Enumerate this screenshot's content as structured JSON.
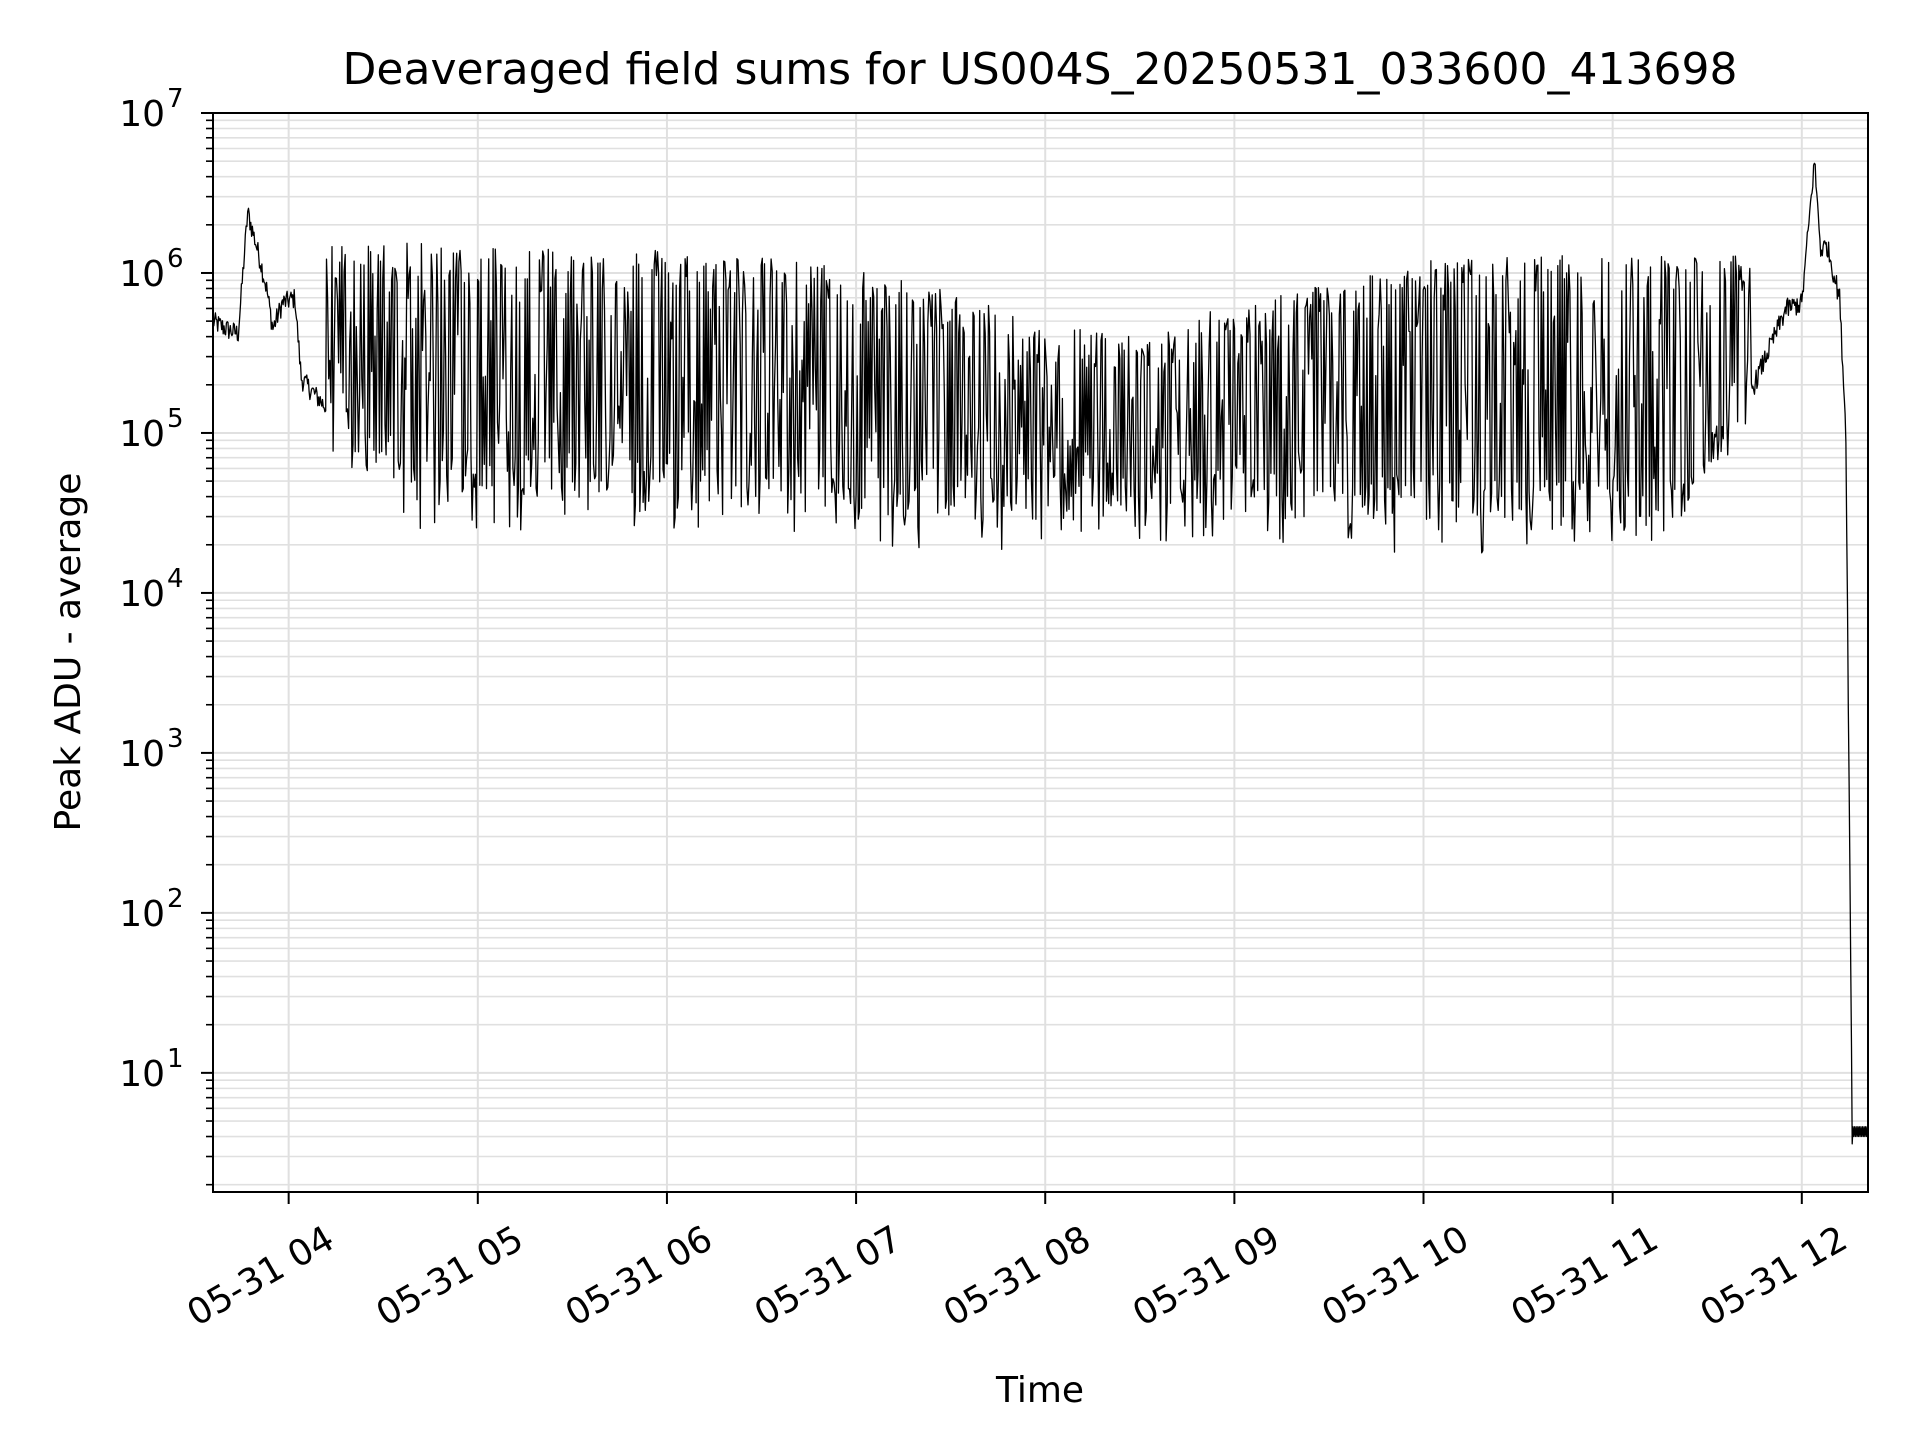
{
  "chart_data": {
    "type": "line",
    "title": "Deaveraged field sums for US004S_20250531_033600_413698",
    "xlabel": "Time",
    "ylabel": "Peak ADU - average",
    "yscale": "log",
    "ylim": [
      1.8,
      10000000
    ],
    "xlim": [
      "2025-05-31 03:36",
      "2025-05-31 12:21"
    ],
    "grid": true,
    "line_color": "#000000",
    "grid_color": "#e0e0e0",
    "x_ticks": [
      {
        "t": "2025-05-31 04:00",
        "label": "05-31 04"
      },
      {
        "t": "2025-05-31 05:00",
        "label": "05-31 05"
      },
      {
        "t": "2025-05-31 06:00",
        "label": "05-31 06"
      },
      {
        "t": "2025-05-31 07:00",
        "label": "05-31 07"
      },
      {
        "t": "2025-05-31 08:00",
        "label": "05-31 08"
      },
      {
        "t": "2025-05-31 09:00",
        "label": "05-31 09"
      },
      {
        "t": "2025-05-31 10:00",
        "label": "05-31 10"
      },
      {
        "t": "2025-05-31 11:00",
        "label": "05-31 11"
      },
      {
        "t": "2025-05-31 12:00",
        "label": "05-31 12"
      }
    ],
    "y_ticks": [
      {
        "value": 10,
        "base": "10",
        "exp": "1"
      },
      {
        "value": 100,
        "base": "10",
        "exp": "2"
      },
      {
        "value": 1000,
        "base": "10",
        "exp": "3"
      },
      {
        "value": 10000,
        "base": "10",
        "exp": "4"
      },
      {
        "value": 100000,
        "base": "10",
        "exp": "5"
      },
      {
        "value": 1000000,
        "base": "10",
        "exp": "6"
      },
      {
        "value": 10000000,
        "base": "10",
        "exp": "7"
      }
    ],
    "series": [
      {
        "style": "dense oscillating trace (values estimated)",
        "points": [
          [
            "2025-05-31 03:36",
            500000
          ],
          [
            "2025-05-31 03:40",
            450000
          ],
          [
            "2025-05-31 03:44",
            420000
          ],
          [
            "2025-05-31 03:47",
            2400000
          ],
          [
            "2025-05-31 03:51",
            1200000
          ],
          [
            "2025-05-31 03:53",
            800000
          ],
          [
            "2025-05-31 03:55",
            450000
          ],
          [
            "2025-05-31 03:58",
            650000
          ],
          [
            "2025-05-31 04:02",
            700000
          ],
          [
            "2025-05-31 04:04",
            220000
          ],
          [
            "2025-05-31 04:10",
            160000
          ],
          [
            "2025-05-31 04:15",
            120000
          ],
          [
            "2025-05-31 04:20",
            80000
          ],
          [
            "2025-05-31 04:25",
            55000
          ],
          [
            "2025-05-31 04:30",
            45000
          ],
          [
            "2025-05-31 04:40",
            42000
          ],
          [
            "2025-05-31 05:00",
            40000
          ],
          [
            "2025-05-31 05:30",
            42000
          ],
          [
            "2025-05-31 06:00",
            40000
          ],
          [
            "2025-05-31 06:30",
            38000
          ],
          [
            "2025-05-31 07:00",
            30000
          ],
          [
            "2025-05-31 07:30",
            30000
          ],
          [
            "2025-05-31 08:00",
            32000
          ],
          [
            "2025-05-31 08:30",
            35000
          ],
          [
            "2025-05-31 09:00",
            35000
          ],
          [
            "2025-05-31 09:30",
            32000
          ],
          [
            "2025-05-31 10:00",
            28000
          ],
          [
            "2025-05-31 10:30",
            28000
          ],
          [
            "2025-05-31 11:00",
            28000
          ],
          [
            "2025-05-31 11:20",
            30000
          ],
          [
            "2025-05-31 11:30",
            50000
          ],
          [
            "2025-05-31 11:40",
            120000
          ],
          [
            "2025-05-31 11:50",
            350000
          ],
          [
            "2025-05-31 11:55",
            600000
          ],
          [
            "2025-05-31 12:00",
            650000
          ],
          [
            "2025-05-31 12:04",
            5000000
          ],
          [
            "2025-05-31 12:06",
            1400000
          ],
          [
            "2025-05-31 12:08",
            1500000
          ],
          [
            "2025-05-31 12:12",
            700000
          ],
          [
            "2025-05-31 12:14",
            100000
          ],
          [
            "2025-05-31 12:16",
            4
          ],
          [
            "2025-05-31 12:21",
            4
          ]
        ],
        "oscillation": {
          "start": "2025-05-31 04:12",
          "end": "2025-05-31 11:44",
          "upper_envelope": [
            [
              "2025-05-31 04:12",
              1400000
            ],
            [
              "2025-05-31 05:00",
              1400000
            ],
            [
              "2025-05-31 06:00",
              1300000
            ],
            [
              "2025-05-31 07:00",
              1000000
            ],
            [
              "2025-05-31 08:00",
              500000
            ],
            [
              "2025-05-31 08:30",
              350000
            ],
            [
              "2025-05-31 09:00",
              600000
            ],
            [
              "2025-05-31 10:00",
              1100000
            ],
            [
              "2025-05-31 11:00",
              1200000
            ],
            [
              "2025-05-31 11:44",
              1200000
            ]
          ]
        }
      }
    ]
  }
}
